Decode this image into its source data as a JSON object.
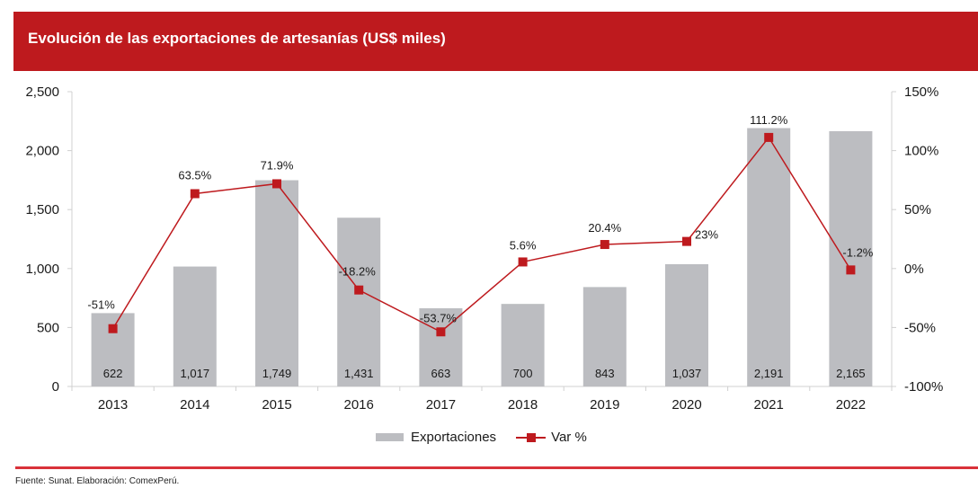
{
  "header": {
    "title": "Evolución de las exportaciones de artesanías (US$ miles)"
  },
  "colors": {
    "brand_red": "#be1a1e",
    "bar_gray": "#bcbdc1",
    "line_red": "#be1a1e"
  },
  "chart_data": {
    "type": "bar",
    "title": "Evolución de las exportaciones de artesanías (US$ miles)",
    "categories": [
      "2013",
      "2014",
      "2015",
      "2016",
      "2017",
      "2018",
      "2019",
      "2020",
      "2021",
      "2022"
    ],
    "series": [
      {
        "name": "Exportaciones",
        "type": "bar",
        "axis": "left",
        "values": [
          622,
          1017,
          1749,
          1431,
          663,
          700,
          843,
          1037,
          2191,
          2165
        ],
        "labels": [
          "622",
          "1,017",
          "1,749",
          "1,431",
          "663",
          "700",
          "843",
          "1,037",
          "2,191",
          "2,165"
        ]
      },
      {
        "name": "Var %",
        "type": "line",
        "axis": "right",
        "values": [
          -51,
          63.5,
          71.9,
          -18.2,
          -53.7,
          5.6,
          20.4,
          23,
          111.2,
          -1.2
        ],
        "labels": [
          "-51%",
          "63.5%",
          "71.9%",
          "-18.2%",
          "-53.7%",
          "5.6%",
          "20.4%",
          "23%",
          "111.2%",
          "-1.2%"
        ]
      }
    ],
    "y_left": {
      "ylim": [
        0,
        2500
      ],
      "ticks": [
        0,
        500,
        1000,
        1500,
        2000,
        2500
      ],
      "tick_labels": [
        "0",
        "500",
        "1,000",
        "1,500",
        "2,000",
        "2,500"
      ]
    },
    "y_right": {
      "ylim": [
        -100,
        150
      ],
      "ticks": [
        -100,
        -50,
        0,
        50,
        100,
        150
      ],
      "tick_labels": [
        "-100%",
        "-50%",
        "0%",
        "50%",
        "100%",
        "150%"
      ]
    },
    "xlabel": "",
    "ylabel": "",
    "grid": false,
    "legend": {
      "placement": "bottom",
      "entries": [
        "Exportaciones",
        "Var %"
      ]
    }
  },
  "footer": {
    "source": "Fuente: Sunat. Elaboración: ComexPerú."
  }
}
